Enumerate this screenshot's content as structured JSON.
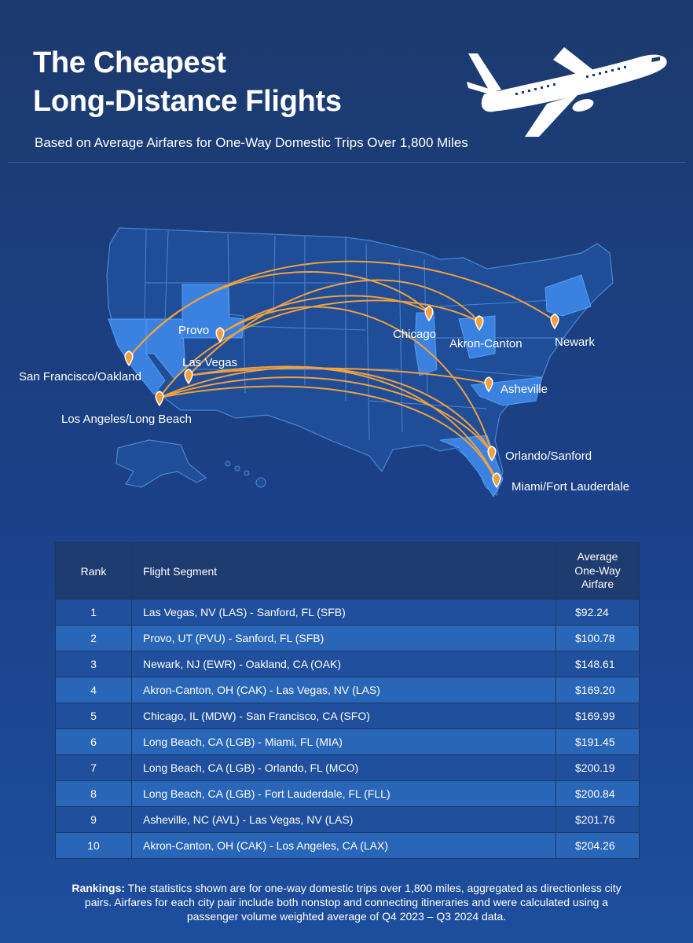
{
  "header": {
    "title_line1": "The Cheapest",
    "title_line2": "Long-Distance Flights",
    "subtitle": "Based on Average Airfares for One-Way Domestic Trips Over 1,800 Miles"
  },
  "map": {
    "cities": [
      "San Francisco/Oakland",
      "Los Angeles/Long Beach",
      "Provo",
      "Las Vegas",
      "Chicago",
      "Akron-Canton",
      "Newark",
      "Asheville",
      "Orlando/Sanford",
      "Miami/Fort Lauderdale"
    ],
    "highlight_color": "#3b82e0",
    "route_color": "#f0a040"
  },
  "table": {
    "headers": {
      "rank": "Rank",
      "segment": "Flight Segment",
      "fare_line1": "Average",
      "fare_line2": "One-Way",
      "fare_line3": "Airfare"
    },
    "rows": [
      {
        "rank": "1",
        "segment": "Las Vegas, NV (LAS) - Sanford, FL (SFB)",
        "fare": "$92.24"
      },
      {
        "rank": "2",
        "segment": "Provo, UT (PVU) - Sanford, FL (SFB)",
        "fare": "$100.78"
      },
      {
        "rank": "3",
        "segment": "Newark, NJ (EWR) - Oakland, CA (OAK)",
        "fare": "$148.61"
      },
      {
        "rank": "4",
        "segment": "Akron-Canton, OH (CAK) - Las Vegas, NV (LAS)",
        "fare": "$169.20"
      },
      {
        "rank": "5",
        "segment": "Chicago, IL (MDW) - San Francisco, CA (SFO)",
        "fare": "$169.99"
      },
      {
        "rank": "6",
        "segment": "Long Beach, CA (LGB) - Miami, FL (MIA)",
        "fare": "$191.45"
      },
      {
        "rank": "7",
        "segment": "Long Beach, CA (LGB) - Orlando, FL (MCO)",
        "fare": "$200.19"
      },
      {
        "rank": "8",
        "segment": "Long Beach, CA (LGB) - Fort Lauderdale, FL (FLL)",
        "fare": "$200.84"
      },
      {
        "rank": "9",
        "segment": "Asheville, NC (AVL) - Las Vegas, NV (LAS)",
        "fare": "$201.76"
      },
      {
        "rank": "10",
        "segment": "Akron-Canton, OH (CAK) - Los Angeles, CA (LAX)",
        "fare": "$204.26"
      }
    ]
  },
  "footnote": {
    "label": "Rankings:",
    "text": " The statistics shown are for one-way domestic trips over 1,800 miles, aggregated as directionless city pairs. Airfares for each city pair include both nonstop and connecting itineraries and were calculated using a passenger volume weighted average of Q4 2023 – Q3 2024 data."
  }
}
